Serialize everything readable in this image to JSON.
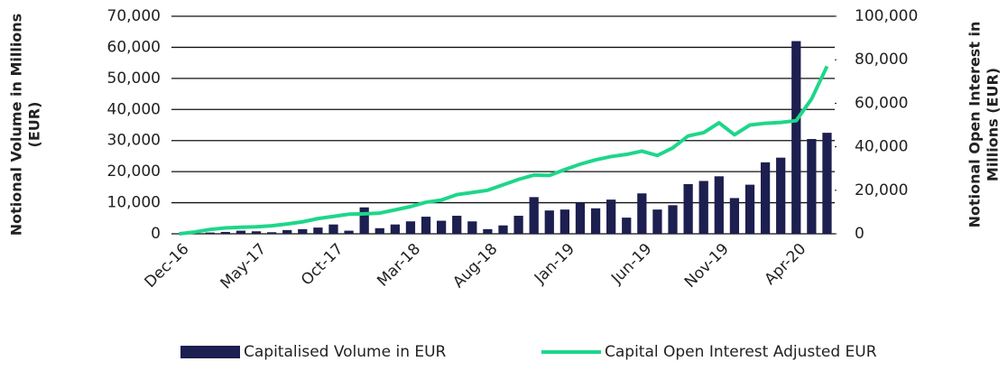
{
  "chart_data": {
    "type": "bar_line",
    "categories": [
      "Dec-16",
      null,
      null,
      null,
      null,
      "May-17",
      null,
      null,
      null,
      null,
      "Oct-17",
      null,
      null,
      null,
      null,
      "Mar-18",
      null,
      null,
      null,
      null,
      "Aug-18",
      null,
      null,
      null,
      null,
      "Jan-19",
      null,
      null,
      null,
      null,
      "Jun-19",
      null,
      null,
      null,
      null,
      "Nov-19",
      null,
      null,
      null,
      null,
      "Apr-20",
      null,
      null
    ],
    "y_label": "Notional Volume in Millions (EUR)",
    "y2_label": "Notional Open Interest in Millions (EUR)",
    "ylim": [
      0,
      70000
    ],
    "yticks": [
      {
        "value": 0,
        "label": "0"
      },
      {
        "value": 10000,
        "label": "10,000"
      },
      {
        "value": 20000,
        "label": "20,000"
      },
      {
        "value": 30000,
        "label": "30,000"
      },
      {
        "value": 40000,
        "label": "40,000"
      },
      {
        "value": 50000,
        "label": "50,000"
      },
      {
        "value": 60000,
        "label": "60,000"
      },
      {
        "value": 70000,
        "label": "70,000"
      }
    ],
    "y2lim": [
      0,
      100000
    ],
    "y2ticks": [
      {
        "value": 0,
        "label": "0"
      },
      {
        "value": 20000,
        "label": "20,000"
      },
      {
        "value": 40000,
        "label": "40,000"
      },
      {
        "value": 60000,
        "label": "60,000"
      },
      {
        "value": 80000,
        "label": "80,000"
      },
      {
        "value": 100000,
        "label": "100,000"
      }
    ],
    "grid": true,
    "legend": "bottom",
    "series": [
      {
        "name": "Capitalised Volume in EUR",
        "type": "bar",
        "color": "#1c1f4f",
        "values": [
          100,
          200,
          400,
          600,
          1000,
          800,
          500,
          1200,
          1500,
          2000,
          3000,
          1000,
          8500,
          1800,
          3000,
          4000,
          5500,
          4200,
          5800,
          4000,
          1500,
          2700,
          5800,
          11800,
          7500,
          7800,
          10000,
          8200,
          11000,
          5200,
          13000,
          7800,
          9200,
          16000,
          17000,
          18500,
          11500,
          15800,
          23000,
          24500,
          62000,
          30500,
          32500
        ]
      },
      {
        "name": "Capital Open Interest Adjusted EUR",
        "type": "line",
        "axis": "y2",
        "color": "#1ed68a",
        "values": [
          0,
          800,
          2000,
          2700,
          3000,
          3200,
          3700,
          4500,
          5500,
          7000,
          8000,
          9000,
          9200,
          9500,
          11000,
          12500,
          14500,
          15500,
          18000,
          19000,
          20000,
          22500,
          25000,
          27000,
          26800,
          29500,
          32000,
          34000,
          35500,
          36500,
          38000,
          36000,
          39500,
          45000,
          46500,
          51000,
          45500,
          50000,
          50800,
          51200,
          52000,
          62000,
          77000
        ]
      }
    ]
  }
}
